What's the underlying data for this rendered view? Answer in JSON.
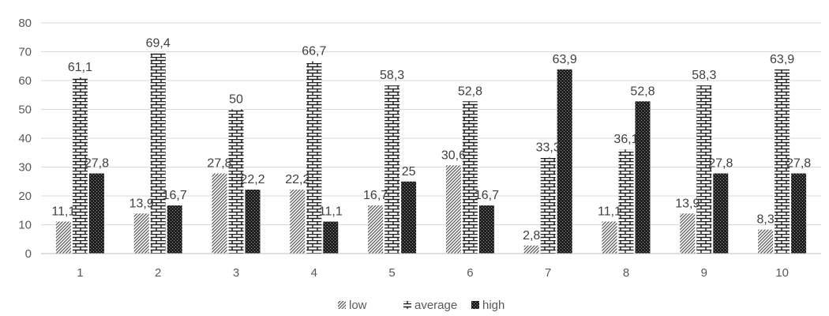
{
  "chart_data": {
    "type": "bar",
    "categories": [
      "1",
      "2",
      "3",
      "4",
      "5",
      "6",
      "7",
      "8",
      "9",
      "10"
    ],
    "series": [
      {
        "name": "low",
        "values": [
          11.1,
          13.9,
          27.8,
          22.2,
          16.7,
          30.6,
          2.8,
          11.1,
          13.9,
          8.3
        ],
        "labels": [
          "11,1",
          "13,9",
          "27,8",
          "22,2",
          "16,7",
          "30,6",
          "2,8",
          "11,1",
          "13,9",
          "8,3"
        ]
      },
      {
        "name": "average",
        "values": [
          61.1,
          69.4,
          50,
          66.7,
          58.3,
          52.8,
          33.3,
          36.1,
          58.3,
          63.9
        ],
        "labels": [
          "61,1",
          "69,4",
          "50",
          "66,7",
          "58,3",
          "52,8",
          "33,3",
          "36,1",
          "58,3",
          "63,9"
        ]
      },
      {
        "name": "high",
        "values": [
          27.8,
          16.7,
          22.2,
          11.1,
          25,
          16.7,
          63.9,
          52.8,
          27.8,
          27.8
        ],
        "labels": [
          "27,8",
          "16,7",
          "22,2",
          "11,1",
          "25",
          "16,7",
          "63,9",
          "52,8",
          "27,8",
          "27,8"
        ]
      }
    ],
    "ylim": [
      0,
      80
    ],
    "yticks": [
      "0",
      "10",
      "20",
      "30",
      "40",
      "50",
      "60",
      "70",
      "80"
    ],
    "grid": true,
    "legend_position": "bottom"
  }
}
